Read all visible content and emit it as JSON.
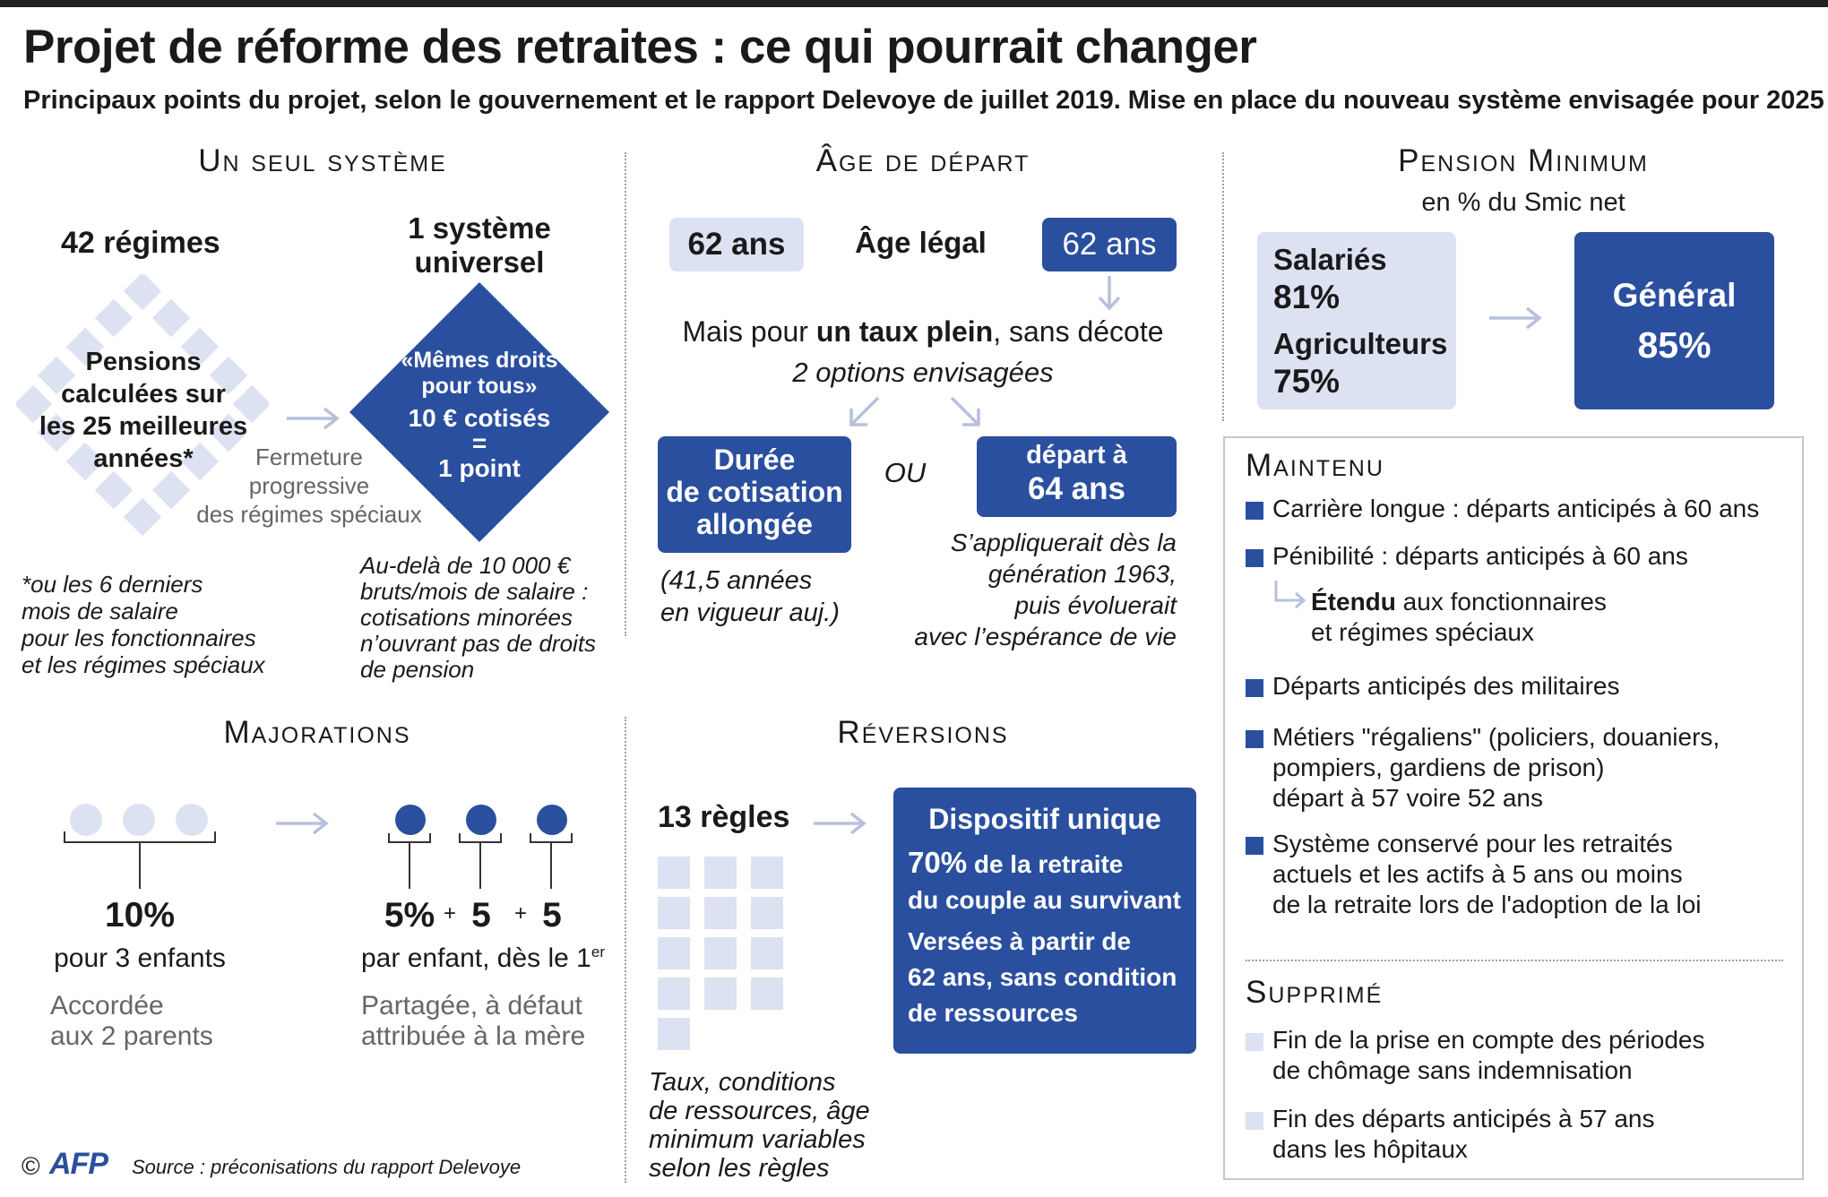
{
  "header": {
    "title": "Projet de réforme des retraites : ce qui pourrait changer",
    "subtitle": "Principaux points du projet, selon le gouvernement et le rapport Delevoye de juillet 2019. Mise en place du nouveau système envisagée pour 2025"
  },
  "colors": {
    "accent": "#2a4f9e",
    "light": "#dde2f2",
    "text": "#1a1a1a"
  },
  "systeme": {
    "heading": "Un seul système",
    "regimes": "42 régimes",
    "pensions_l1": "Pensions",
    "pensions_l2": "calculées sur",
    "pensions_l3": "les 25 meilleures",
    "pensions_l4": "années*",
    "universel_l1": "1 système",
    "universel_l2": "universel",
    "diamond_l1": "«Mêmes droits",
    "diamond_l2": "pour tous»",
    "diamond_l3": "10 € cotisés",
    "diamond_l4": "=",
    "diamond_l5": "1 point",
    "fermeture_l1": "Fermeture",
    "fermeture_l2": "progressive",
    "fermeture_l3": "des régimes spéciaux",
    "note_l1": "*ou les 6 derniers",
    "note_l2": "mois de salaire",
    "note_l3": "pour les fonctionnaires",
    "note_l4": "et les régimes spéciaux",
    "audela_l1": "Au-delà de 10 000 €",
    "audela_l2": "bruts/mois de salaire :",
    "audela_l3": "cotisations minorées",
    "audela_l4": "n’ouvrant pas de droits",
    "audela_l5": "de pension"
  },
  "age": {
    "heading": "Âge de départ",
    "box_left": "62 ans",
    "label": "Âge légal",
    "box_right": "62 ans",
    "mais_a": "Mais pour ",
    "mais_b": "un taux plein",
    "mais_c": ", sans décote",
    "options": "2 options envisagées",
    "duree_l1": "Durée",
    "duree_l2": "de cotisation",
    "duree_l3": "allongée",
    "ou": "OU",
    "depart_l1": "départ à",
    "depart_l2": "64 ans",
    "vigueur_l1": "(41,5 années",
    "vigueur_l2": "en vigueur auj.)",
    "appl_l1": "S’appliquerait dès la",
    "appl_l2": "génération 1963,",
    "appl_l3": "puis évoluerait",
    "appl_l4": "avec l’espérance de vie"
  },
  "pension": {
    "heading": "Pension Minimum",
    "sub": "en % du Smic net",
    "salaries": "Salariés",
    "salaries_val": "81%",
    "agriculteurs": "Agriculteurs",
    "agriculteurs_val": "75%",
    "general": "Général",
    "general_val": "85%"
  },
  "maintenu": {
    "heading": "Maintenu",
    "i1": "Carrière longue : départs anticipés à 60 ans",
    "i2": "Pénibilité : départs anticipés à 60 ans",
    "etendu_b": "Étendu",
    "etendu_rest": " aux fonctionnaires",
    "etendu_l2": "et régimes spéciaux",
    "i3": "Départs anticipés des militaires",
    "i4_l1": "Métiers \"régaliens\" (policiers, douaniers,",
    "i4_l2": "pompiers, gardiens de prison)",
    "i4_l3": "départ à 57 voire 52 ans",
    "i5_l1": "Système conservé pour les retraités",
    "i5_l2": "actuels et les actifs à 5 ans ou moins",
    "i5_l3": "de la retraite lors de l'adoption de la loi"
  },
  "supprime": {
    "heading": "Supprimé",
    "i1_l1": "Fin de la prise en compte des périodes",
    "i1_l2": "de chômage sans indemnisation",
    "i2_l1": "Fin des départs anticipés à 57 ans",
    "i2_l2": "dans les hôpitaux"
  },
  "majorations": {
    "heading": "Majorations",
    "pct": "10%",
    "pour": "pour 3 enfants",
    "accordee_l1": "Accordée",
    "accordee_l2": "aux 2 parents",
    "v1": "5%",
    "plus1": "+",
    "v2": "5",
    "plus2": "+",
    "v3": "5",
    "par": "par enfant, dès le 1",
    "par_sup": "er",
    "partagee_l1": "Partagée,  à défaut",
    "partagee_l2": "attribuée à la mère"
  },
  "reversions": {
    "heading": "Réversions",
    "regles": "13 règles",
    "dispositif": "Dispositif unique",
    "l1_b": "70%",
    "l1_rest": " de la retraite",
    "l2": "du couple au survivant",
    "l3": "Versées à partir de",
    "l4": "62 ans, sans condition",
    "l5": "de ressources",
    "taux_l1": "Taux, conditions",
    "taux_l2": "de ressources, âge",
    "taux_l3": "minimum variables",
    "taux_l4": "selon les règles"
  },
  "footer": {
    "copyright": "©",
    "logo": "AFP",
    "source": "Source : préconisations du rapport Delevoye"
  }
}
